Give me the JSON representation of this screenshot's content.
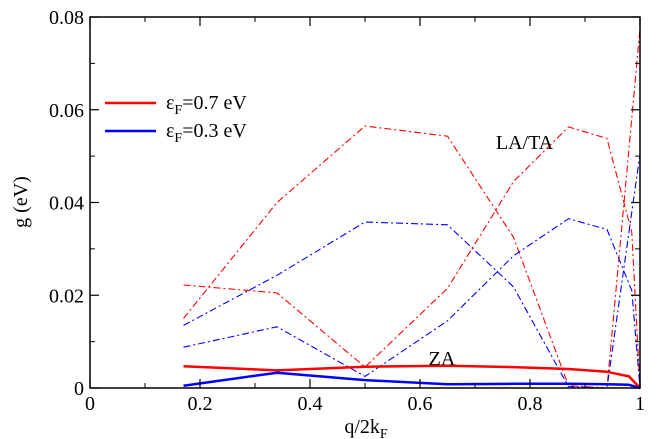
{
  "chart_data": {
    "type": "line",
    "xlabel": "q/2k",
    "xlabel_sub": "F",
    "ylabel": "g (eV)",
    "xlim": [
      0,
      1
    ],
    "ylim": [
      0,
      0.08
    ],
    "xticks": [
      0,
      0.2,
      0.4,
      0.6,
      0.8,
      1
    ],
    "xtick_labels": [
      "0",
      "0.2",
      "0.4",
      "0.6",
      "0.8",
      "1"
    ],
    "yticks": [
      0,
      0.02,
      0.04,
      0.06,
      0.08
    ],
    "ytick_labels": [
      "0",
      "0.02",
      "0.04",
      "0.06",
      "0.08"
    ],
    "grid": false,
    "legend_position": "top-left",
    "legend": [
      {
        "symbol": "ε",
        "sub": "F",
        "text": "=0.7 eV",
        "color": "#ff0000"
      },
      {
        "symbol": "ε",
        "sub": "F",
        "text": "=0.3 eV",
        "color": "#0000ff"
      }
    ],
    "annotations": [
      {
        "text": "LA/TA",
        "x": 0.79,
        "y": 0.053
      },
      {
        "text": "ZA",
        "x": 0.64,
        "y": 0.0065
      }
    ],
    "series": [
      {
        "group": "LA/TA",
        "color": "#ff0000",
        "style": "dashdot",
        "x": [
          0.17,
          0.34,
          0.5,
          0.65,
          0.77,
          0.87,
          0.94,
          0.985,
          1.0
        ],
        "y": [
          0.015,
          0.04,
          0.0565,
          0.0543,
          0.0325,
          0.0005,
          0.0,
          0.0,
          0.0
        ]
      },
      {
        "group": "LA/TA",
        "color": "#ff0000",
        "style": "dashdot",
        "x": [
          0.17,
          0.34,
          0.5,
          0.65,
          0.77,
          0.87,
          0.94,
          0.985,
          1.0
        ],
        "y": [
          0.0222,
          0.0205,
          0.0045,
          0.0215,
          0.0445,
          0.0563,
          0.0538,
          0.0335,
          0.0
        ]
      },
      {
        "group": "LA/TA",
        "color": "#ff0000",
        "style": "dashdot",
        "x": [
          0.87,
          0.94,
          1.0
        ],
        "y": [
          0.0,
          0.0,
          0.0775
        ]
      },
      {
        "group": "LA/TA",
        "color": "#0000ff",
        "style": "dashdot",
        "x": [
          0.17,
          0.34,
          0.5,
          0.65,
          0.77,
          0.87,
          0.94,
          0.985,
          1.0
        ],
        "y": [
          0.0135,
          0.0243,
          0.0358,
          0.0352,
          0.0218,
          0.0003,
          0.0,
          0.0,
          0.0
        ]
      },
      {
        "group": "LA/TA",
        "color": "#0000ff",
        "style": "dashdot",
        "x": [
          0.17,
          0.34,
          0.5,
          0.65,
          0.77,
          0.87,
          0.94,
          0.985,
          1.0
        ],
        "y": [
          0.0088,
          0.0132,
          0.0025,
          0.0145,
          0.0285,
          0.0365,
          0.0342,
          0.021,
          0.0
        ]
      },
      {
        "group": "LA/TA",
        "color": "#0000ff",
        "style": "dashdot",
        "x": [
          0.87,
          0.94,
          1.0
        ],
        "y": [
          0.0,
          0.0,
          0.0505
        ]
      },
      {
        "group": "ZA",
        "color": "#ff0000",
        "style": "solid",
        "x": [
          0.17,
          0.34,
          0.5,
          0.65,
          0.77,
          0.87,
          0.94,
          0.98,
          1.0
        ],
        "y": [
          0.0047,
          0.0038,
          0.0046,
          0.0048,
          0.0045,
          0.0041,
          0.0035,
          0.0025,
          0.0
        ]
      },
      {
        "group": "ZA",
        "color": "#0000ff",
        "style": "solid",
        "x": [
          0.17,
          0.34,
          0.5,
          0.65,
          0.77,
          0.87,
          0.94,
          0.98,
          1.0
        ],
        "y": [
          0.0005,
          0.0033,
          0.0017,
          0.0008,
          0.0009,
          0.0009,
          0.0008,
          0.0007,
          0.0
        ]
      }
    ]
  }
}
